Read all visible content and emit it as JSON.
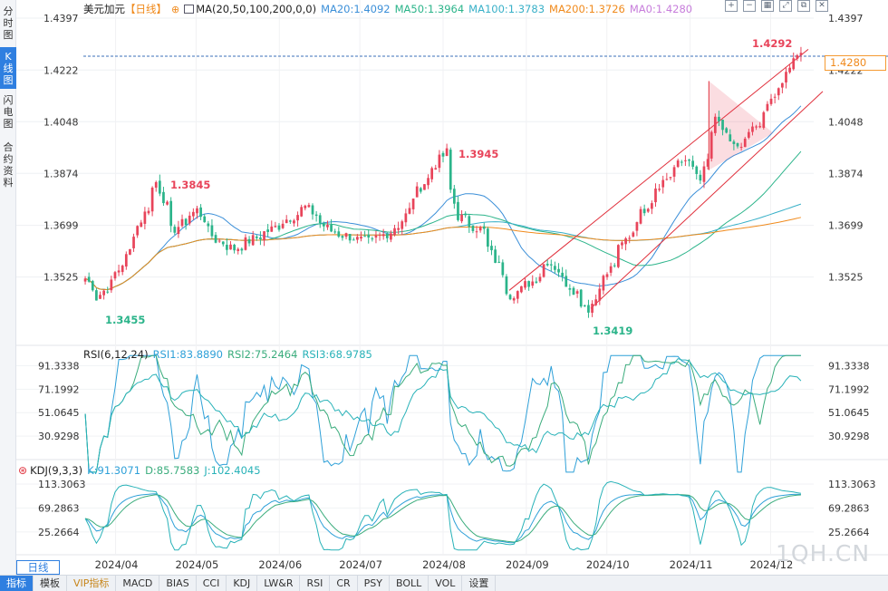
{
  "left_tabs": [
    {
      "chars": [
        "分",
        "时",
        "图"
      ],
      "active": false
    },
    {
      "chars": [
        "K",
        "线",
        "图"
      ],
      "active": true
    },
    {
      "chars": [
        "闪",
        "电",
        "图"
      ],
      "active": false
    },
    {
      "chars": [
        "合",
        "约",
        "资",
        "料"
      ],
      "active": false
    }
  ],
  "main_legend": {
    "symbol": "美元加元",
    "period": "【日线】",
    "ma_params": "MA(20,50,100,200,0,0)",
    "ma20": "MA20:1.4092",
    "ma50": "MA50:1.3964",
    "ma100": "MA100:1.3783",
    "ma200": "MA200:1.3726",
    "ma0": "MA0:1.4280"
  },
  "rsi_legend": {
    "name": "RSI(6,12,24)",
    "rsi1": "RSI1:83.8890",
    "rsi2": "RSI2:75.2464",
    "rsi3": "RSI3:68.9785"
  },
  "kdj_legend": {
    "name": "KDJ(9,3,3)",
    "k": "K:91.3071",
    "d": "D:85.7583",
    "j": "J:102.4045"
  },
  "toolbar_icons": [
    "zoom-in-icon",
    "zoom-out-icon",
    "fit-icon",
    "expand-icon",
    "restore-icon",
    "close-icon"
  ],
  "current_price": "1.4280",
  "price_axis": [
    "1.4397",
    "1.4222",
    "1.4048",
    "1.3874",
    "1.3699",
    "1.3525"
  ],
  "rsi_axis": [
    "91.3338",
    "71.1992",
    "51.0645",
    "30.9298"
  ],
  "kdj_axis": [
    "113.3063",
    "69.2863",
    "25.2664"
  ],
  "annotations": {
    "high_recent": "1.4292",
    "high_aug": "1.3945",
    "high_apr": "1.3845",
    "low_mar": "1.3455",
    "low_sep": "1.3419"
  },
  "months": [
    "2024/04",
    "2024/05",
    "2024/06",
    "2024/07",
    "2024/08",
    "2024/09",
    "2024/10",
    "2024/11",
    "2024/12"
  ],
  "period_label": "日线",
  "bottom_tabs": [
    "指标",
    "模板",
    "VIP指标",
    "MACD",
    "BIAS",
    "CCI",
    "KDJ",
    "LW&R",
    "RSI",
    "CR",
    "PSY",
    "BOLL",
    "VOL",
    "设置"
  ],
  "watermark": "1QH.CN",
  "colors": {
    "up": "#e8445a",
    "down": "#2bb48a",
    "ma20": "#3b8fd8",
    "ma50": "#2bb48a",
    "ma100": "#38b0c8",
    "ma200": "#f08a1c",
    "channel": "#e0303c"
  },
  "chart_data": {
    "type": "candlestick",
    "ylim": [
      1.34,
      1.4397
    ],
    "x_range": [
      "2024-03-20",
      "2024-12-13"
    ],
    "anchors": [
      {
        "date": "2024-03-20",
        "close": 1.352
      },
      {
        "date": "2024-03-25",
        "close": 1.3455
      },
      {
        "date": "2024-04-02",
        "close": 1.355
      },
      {
        "date": "2024-04-12",
        "close": 1.376
      },
      {
        "date": "2024-04-16",
        "close": 1.3845
      },
      {
        "date": "2024-04-22",
        "close": 1.368
      },
      {
        "date": "2024-05-01",
        "close": 1.375
      },
      {
        "date": "2024-05-08",
        "close": 1.365
      },
      {
        "date": "2024-05-15",
        "close": 1.362
      },
      {
        "date": "2024-05-28",
        "close": 1.368
      },
      {
        "date": "2024-06-11",
        "close": 1.376
      },
      {
        "date": "2024-06-20",
        "close": 1.368
      },
      {
        "date": "2024-07-05",
        "close": 1.364
      },
      {
        "date": "2024-07-16",
        "close": 1.37
      },
      {
        "date": "2024-07-24",
        "close": 1.383
      },
      {
        "date": "2024-08-02",
        "close": 1.3945
      },
      {
        "date": "2024-08-07",
        "close": 1.373
      },
      {
        "date": "2024-08-16",
        "close": 1.368
      },
      {
        "date": "2024-08-27",
        "close": 1.3465
      },
      {
        "date": "2024-09-04",
        "close": 1.351
      },
      {
        "date": "2024-09-10",
        "close": 1.358
      },
      {
        "date": "2024-09-25",
        "close": 1.3419
      },
      {
        "date": "2024-10-01",
        "close": 1.352
      },
      {
        "date": "2024-10-09",
        "close": 1.365
      },
      {
        "date": "2024-10-21",
        "close": 1.383
      },
      {
        "date": "2024-11-01",
        "close": 1.393
      },
      {
        "date": "2024-11-06",
        "close": 1.385
      },
      {
        "date": "2024-11-12",
        "close": 1.4048
      },
      {
        "date": "2024-11-20",
        "close": 1.395
      },
      {
        "date": "2024-11-26",
        "close": 1.402
      },
      {
        "date": "2024-12-03",
        "close": 1.412
      },
      {
        "date": "2024-12-13",
        "close": 1.428
      }
    ]
  }
}
